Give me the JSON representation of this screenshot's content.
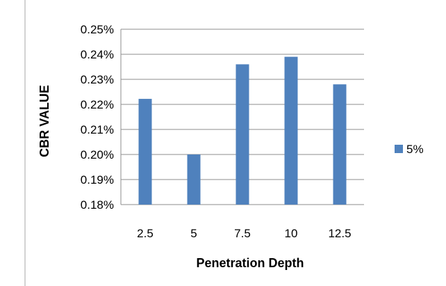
{
  "chart_data": {
    "type": "bar",
    "categories": [
      "2.5",
      "5",
      "7.5",
      "10",
      "12.5"
    ],
    "series": [
      {
        "name": "5%",
        "values": [
          0.2222,
          0.2,
          0.236,
          0.239,
          0.228
        ]
      }
    ],
    "xlabel": "Penetration Depth",
    "ylabel": "CBR VALUE",
    "ylim": [
      0.18,
      0.25
    ],
    "yticks": [
      "0.18%",
      "0.19%",
      "0.20%",
      "0.21%",
      "0.22%",
      "0.23%",
      "0.24%",
      "0.25%"
    ],
    "grid": "horizontal",
    "legend_position": "right",
    "bar_color": "#4f81bd"
  }
}
